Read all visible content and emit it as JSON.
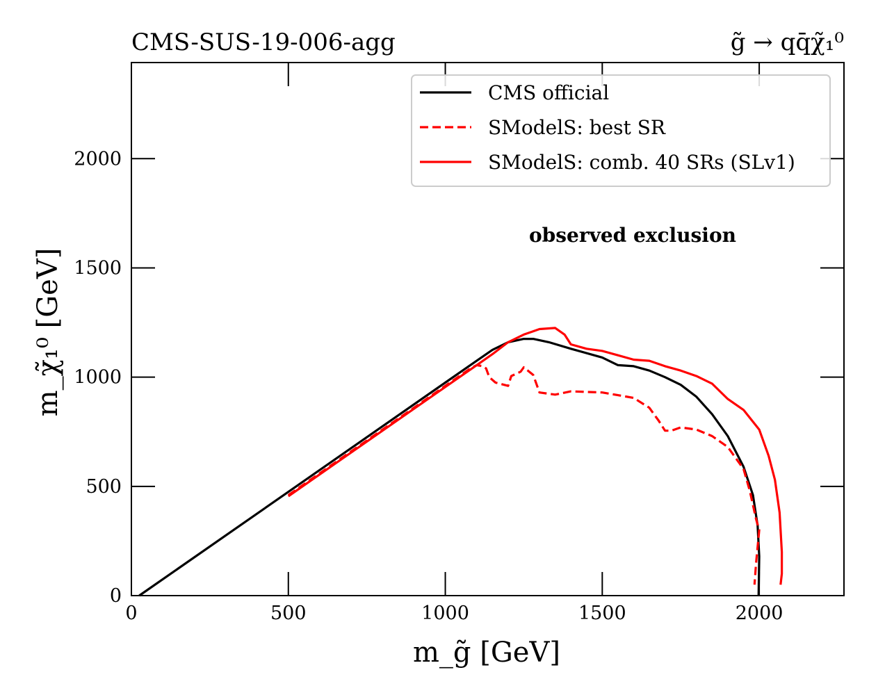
{
  "chart_data": {
    "type": "line",
    "title_left": "CMS-SUS-19-006-agg",
    "title_right": "g̃ → qq̄χ̃₁⁰",
    "xlabel": "m_g̃ [GeV]",
    "ylabel": "m_χ̃₁⁰ [GeV]",
    "xlim": [
      0,
      2270
    ],
    "ylim": [
      0,
      2440
    ],
    "xticks": [
      0,
      500,
      1000,
      1500,
      2000
    ],
    "yticks": [
      0,
      500,
      1000,
      1500,
      2000
    ],
    "grid": false,
    "legend_position": "top-right",
    "annotation": "observed exclusion",
    "series": [
      {
        "name": "CMS official",
        "color": "#000000",
        "style": "solid",
        "x": [
          25,
          500,
          1000,
          1100,
          1150,
          1200,
          1250,
          1280,
          1330,
          1400,
          1500,
          1550,
          1600,
          1650,
          1700,
          1750,
          1800,
          1850,
          1900,
          1950,
          1980,
          1995,
          2000,
          1998
        ],
        "y": [
          0,
          475,
          975,
          1075,
          1125,
          1160,
          1175,
          1175,
          1160,
          1130,
          1090,
          1055,
          1050,
          1030,
          1000,
          965,
          910,
          830,
          730,
          590,
          460,
          320,
          180,
          0
        ]
      },
      {
        "name": "SModelS: best SR",
        "color": "#ff0000",
        "style": "dashed",
        "x": [
          500,
          700,
          900,
          1000,
          1050,
          1080,
          1100,
          1120,
          1130,
          1140,
          1160,
          1200,
          1210,
          1240,
          1250,
          1280,
          1300,
          1350,
          1400,
          1500,
          1600,
          1650,
          1680,
          1700,
          1720,
          1750,
          1800,
          1850,
          1900,
          1950,
          1970,
          1990,
          2000,
          1990,
          1985
        ],
        "y": [
          460,
          660,
          860,
          960,
          1010,
          1040,
          1055,
          1050,
          1040,
          1000,
          975,
          960,
          1005,
          1025,
          1045,
          1010,
          930,
          920,
          935,
          930,
          905,
          860,
          800,
          755,
          755,
          770,
          760,
          730,
          680,
          580,
          480,
          350,
          300,
          150,
          50
        ]
      },
      {
        "name": "SModelS: comb. 40 SRs (SLv1)",
        "color": "#ff0000",
        "style": "solid",
        "x": [
          500,
          700,
          900,
          1000,
          1100,
          1150,
          1200,
          1250,
          1300,
          1350,
          1380,
          1400,
          1450,
          1500,
          1550,
          1600,
          1650,
          1700,
          1750,
          1800,
          1850,
          1900,
          1950,
          2000,
          2030,
          2050,
          2065,
          2072,
          2072,
          2068
        ],
        "y": [
          455,
          655,
          855,
          955,
          1055,
          1105,
          1160,
          1195,
          1220,
          1225,
          1195,
          1150,
          1130,
          1120,
          1100,
          1080,
          1075,
          1050,
          1030,
          1005,
          970,
          900,
          850,
          760,
          640,
          530,
          380,
          200,
          100,
          50
        ]
      }
    ]
  }
}
